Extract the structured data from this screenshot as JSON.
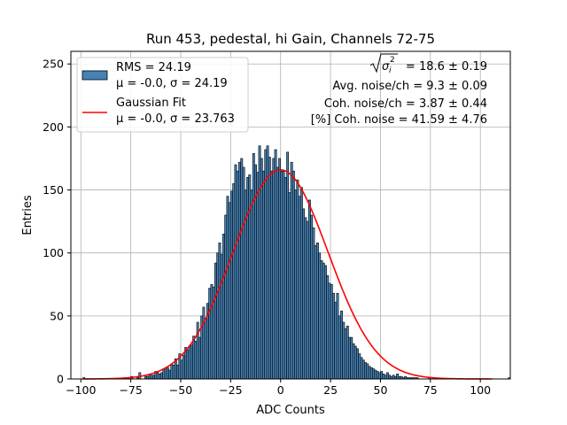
{
  "chart_data": {
    "type": "histogram",
    "title": "Run 453, pedestal, hi Gain, Channels 72-75",
    "xlabel": "ADC Counts",
    "ylabel": "Entries",
    "xlim": [
      -105,
      115
    ],
    "ylim": [
      0,
      260
    ],
    "xticks": [
      -100,
      -75,
      -50,
      -25,
      0,
      25,
      50,
      75,
      100
    ],
    "yticks": [
      0,
      50,
      100,
      150,
      200,
      250
    ],
    "grid": true,
    "bin_start": -99,
    "bin_width": 1,
    "bar_color": "#4682b4",
    "fit_color": "#ff0000",
    "counts": [
      1,
      0,
      0,
      0,
      0,
      0,
      0,
      0,
      0,
      0,
      0,
      0,
      0,
      0,
      0,
      0,
      0,
      0,
      0,
      0,
      1,
      0,
      1,
      1,
      2,
      0,
      0,
      1,
      5,
      0,
      0,
      2,
      2,
      4,
      3,
      3,
      6,
      5,
      4,
      5,
      8,
      9,
      9,
      7,
      12,
      11,
      16,
      11,
      20,
      15,
      19,
      25,
      23,
      26,
      27,
      34,
      30,
      45,
      33,
      50,
      57,
      48,
      60,
      72,
      75,
      73,
      92,
      100,
      108,
      99,
      115,
      130,
      145,
      140,
      149,
      155,
      170,
      165,
      172,
      175,
      168,
      150,
      160,
      162,
      150,
      179,
      170,
      164,
      185,
      175,
      165,
      182,
      185,
      176,
      165,
      175,
      182,
      168,
      175,
      165,
      165,
      160,
      180,
      148,
      172,
      165,
      150,
      158,
      145,
      152,
      135,
      128,
      125,
      142,
      130,
      120,
      106,
      108,
      100,
      94,
      92,
      90,
      82,
      76,
      75,
      68,
      61,
      68,
      50,
      54,
      45,
      40,
      42,
      33,
      33,
      28,
      26,
      24,
      20,
      17,
      15,
      13,
      12,
      10,
      9,
      8,
      7,
      6,
      5,
      6,
      4,
      3,
      5,
      3,
      2,
      3,
      2,
      4,
      2,
      2,
      1,
      2,
      1,
      1,
      1,
      1,
      1,
      1,
      0,
      0,
      0,
      0,
      0,
      1,
      0,
      0,
      0,
      0,
      0,
      0,
      0,
      0,
      0,
      0,
      0,
      0,
      0,
      0,
      0,
      0,
      0,
      0,
      0,
      0,
      0,
      0,
      0,
      0,
      0,
      0,
      0,
      0,
      0,
      0,
      0,
      0,
      0,
      0,
      0,
      0,
      0,
      0,
      0,
      1
    ],
    "fit": {
      "name": "Gaussian Fit",
      "mu": 0.0,
      "sigma": 23.763,
      "amplitude": 166
    },
    "legend": {
      "position": "upper-left",
      "entries": [
        {
          "type": "patch",
          "line1": "RMS = 24.19",
          "line2": "μ = -0.0, σ = 24.19"
        },
        {
          "type": "line",
          "line1": "Gaussian Fit",
          "line2": "μ = -0.0, σ = 23.763"
        }
      ]
    },
    "annotations": {
      "line1_rhs": " = 18.6 ± 0.19",
      "line1_math": "σ",
      "line1_math_sub": "i",
      "line1_math_sup": "2",
      "line2": "Avg. noise/ch = 9.3 ± 0.09",
      "line3": "Coh. noise/ch = 3.87 ± 0.44",
      "line4": "[%] Coh. noise = 41.59 ± 4.76"
    }
  }
}
